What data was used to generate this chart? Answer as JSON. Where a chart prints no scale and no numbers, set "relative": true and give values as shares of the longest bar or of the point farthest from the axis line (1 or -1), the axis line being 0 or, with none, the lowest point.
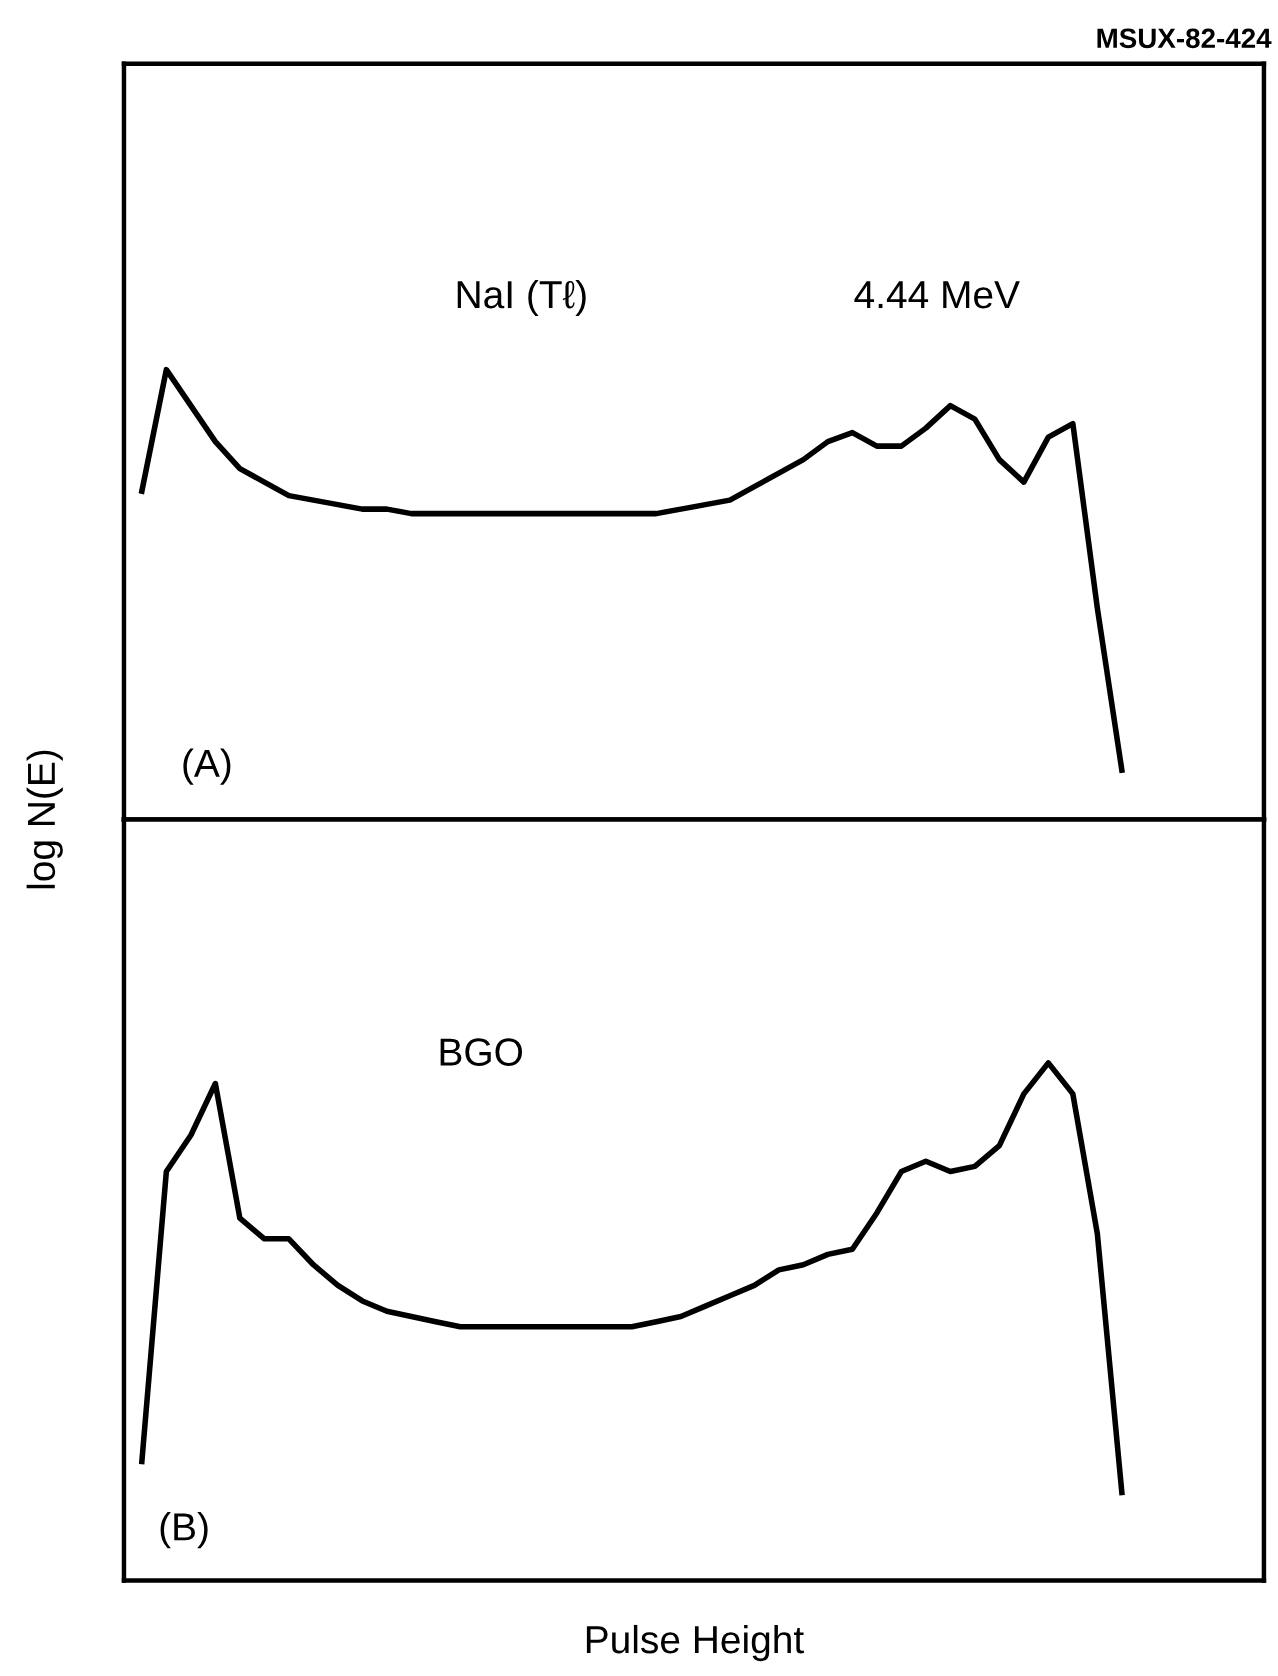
{
  "chart_data": [
    {
      "type": "line",
      "relative": true,
      "ylabel": "log N(E)",
      "tick_labels": false,
      "grid": false,
      "legend": false,
      "annotations": [
        "NaI (Tℓ)",
        "4.44 MeV",
        "(A)",
        "MSUX-82-424"
      ],
      "categories": [
        null,
        null,
        null,
        null,
        null,
        null,
        null,
        null,
        null,
        null,
        null,
        null,
        null,
        null,
        null,
        null,
        null,
        null,
        null,
        null,
        null,
        null,
        null,
        null,
        null,
        null,
        null,
        null,
        null,
        null,
        null,
        null,
        null,
        null,
        null,
        null,
        null,
        null,
        null,
        null,
        null
      ],
      "series": [
        {
          "color": "#000000",
          "values": [
            0.73,
            1.0,
            0.92,
            0.84,
            0.78,
            0.75,
            0.72,
            0.71,
            0.7,
            0.69,
            0.69,
            0.68,
            0.68,
            0.68,
            0.68,
            0.68,
            0.68,
            0.68,
            0.68,
            0.68,
            0.68,
            0.68,
            0.69,
            0.7,
            0.71,
            0.74,
            0.77,
            0.8,
            0.84,
            0.86,
            0.83,
            0.83,
            0.87,
            0.92,
            0.89,
            0.8,
            0.75,
            0.85,
            0.88,
            0.47,
            0.11
          ]
        }
      ]
    },
    {
      "type": "line",
      "relative": true,
      "xlabel": "Pulse Height",
      "tick_labels": false,
      "grid": false,
      "legend": false,
      "annotations": [
        "BGO",
        "(B)"
      ],
      "categories": [
        null,
        null,
        null,
        null,
        null,
        null,
        null,
        null,
        null,
        null,
        null,
        null,
        null,
        null,
        null,
        null,
        null,
        null,
        null,
        null,
        null,
        null,
        null,
        null,
        null,
        null,
        null,
        null,
        null,
        null,
        null,
        null,
        null,
        null,
        null,
        null,
        null,
        null,
        null,
        null,
        null
      ],
      "series": [
        {
          "color": "#000000",
          "values": [
            0.23,
            0.79,
            0.86,
            0.96,
            0.7,
            0.66,
            0.66,
            0.61,
            0.57,
            0.54,
            0.52,
            0.51,
            0.5,
            0.49,
            0.49,
            0.49,
            0.49,
            0.49,
            0.49,
            0.49,
            0.49,
            0.5,
            0.51,
            0.53,
            0.55,
            0.57,
            0.6,
            0.61,
            0.63,
            0.64,
            0.71,
            0.79,
            0.81,
            0.79,
            0.8,
            0.84,
            0.94,
            1.0,
            0.94,
            0.67,
            0.17
          ]
        }
      ]
    }
  ]
}
